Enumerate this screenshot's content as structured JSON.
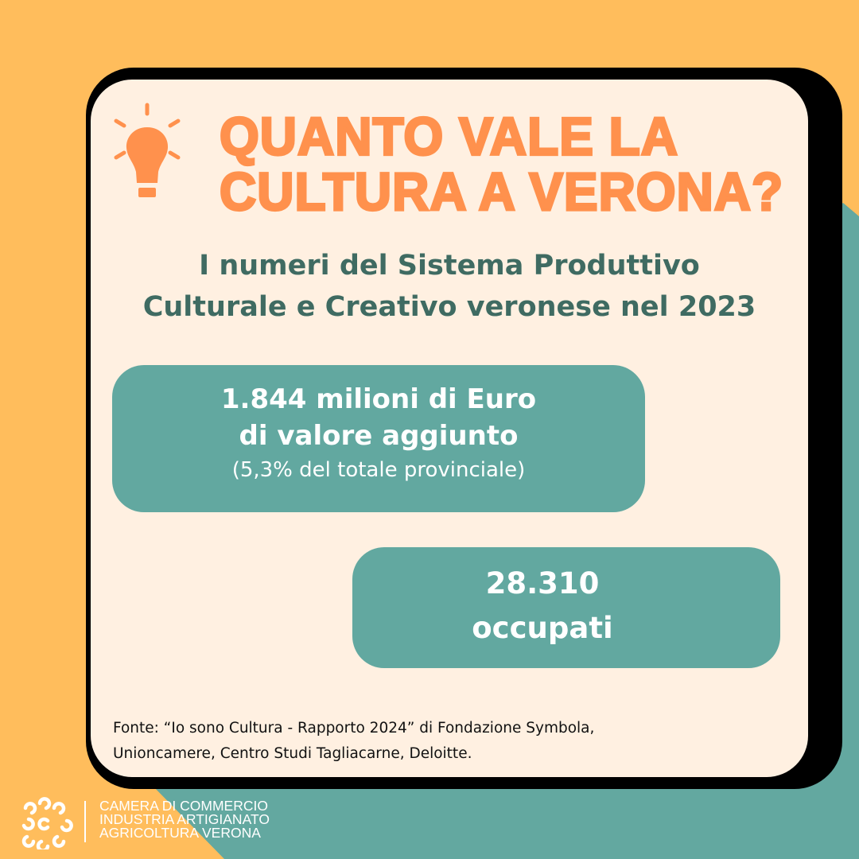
{
  "colors": {
    "background_orange": "#FFBD5C",
    "background_teal": "#63A8A0",
    "card": "#FFF0E1",
    "title": "#FF914D",
    "subtitle": "#3F6B62",
    "box": "#62A8A0"
  },
  "icon": "lightbulb-icon",
  "title": {
    "line1": "QUANTO VALE LA",
    "line2": "CULTURA A VERONA?"
  },
  "subtitle": {
    "line1": "I numeri del Sistema Produttivo",
    "line2": "Culturale e Creativo veronese nel 2023"
  },
  "stat1": {
    "line1": "1.844 milioni di Euro",
    "line2": "di valore aggiunto",
    "note": "(5,3% del totale provinciale)"
  },
  "stat2": {
    "line1": "28.310",
    "line2": "occupati"
  },
  "source": {
    "line1": "Fonte: “Io sono Cultura - Rapporto 2024” di Fondazione Symbola,",
    "line2": "Unioncamere, Centro Studi Tagliacarne, Deloitte."
  },
  "footer": {
    "line1": "CAMERA DI COMMERCIO",
    "line2": "INDUSTRIA ARTIGIANATO",
    "line3": "AGRICOLTURA VERONA"
  }
}
